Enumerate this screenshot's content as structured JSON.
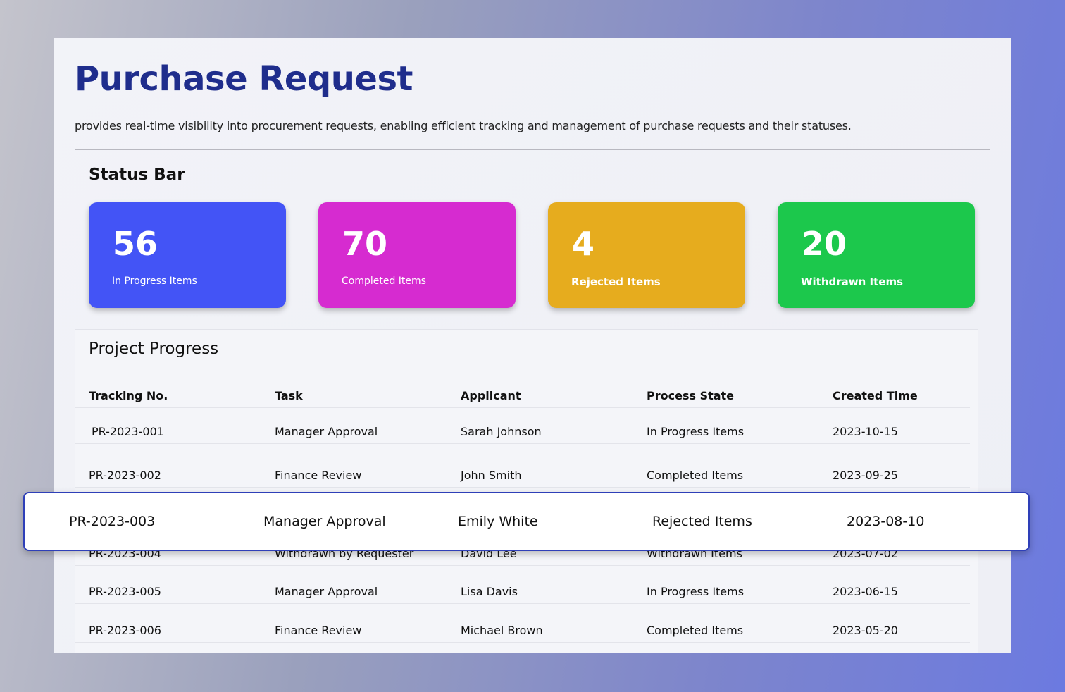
{
  "header": {
    "title": "Purchase Request",
    "description": "provides real-time visibility into procurement requests, enabling efficient tracking and management of purchase requests and their statuses."
  },
  "status": {
    "title": "Status Bar",
    "cards": [
      {
        "value": 56,
        "label": "In Progress Items",
        "color": "#4354f6"
      },
      {
        "value": 70,
        "label": "Completed Items",
        "color": "#d62bd0"
      },
      {
        "value": 4,
        "label": "Rejected Items",
        "color": "#e6ac1e"
      },
      {
        "value": 20,
        "label": "Withdrawn Items",
        "color": "#1cc84c"
      }
    ]
  },
  "table": {
    "title": "Project Progress",
    "columns": [
      "Tracking No.",
      "Task",
      "Applicant",
      "Process State",
      "Created Time"
    ],
    "rows": [
      [
        "PR-2023-001",
        "Manager Approval",
        "Sarah Johnson",
        "In Progress Items",
        "2023-10-15"
      ],
      [
        "PR-2023-002",
        "Finance Review",
        "John Smith",
        "Completed Items",
        "2023-09-25"
      ],
      [
        "PR-2023-003",
        "Manager Approval",
        "Emily White",
        "Rejected Items",
        "2023-08-10"
      ],
      [
        "PR-2023-004",
        "Withdrawn by Requester",
        "David Lee",
        "Withdrawn Items",
        "2023-07-02"
      ],
      [
        "PR-2023-005",
        "Manager Approval",
        "Lisa Davis",
        "In Progress Items",
        "2023-06-15"
      ],
      [
        "PR-2023-006",
        "Finance Review",
        "Michael Brown",
        "Completed Items",
        "2023-05-20"
      ]
    ],
    "highlighted_row": 2
  }
}
